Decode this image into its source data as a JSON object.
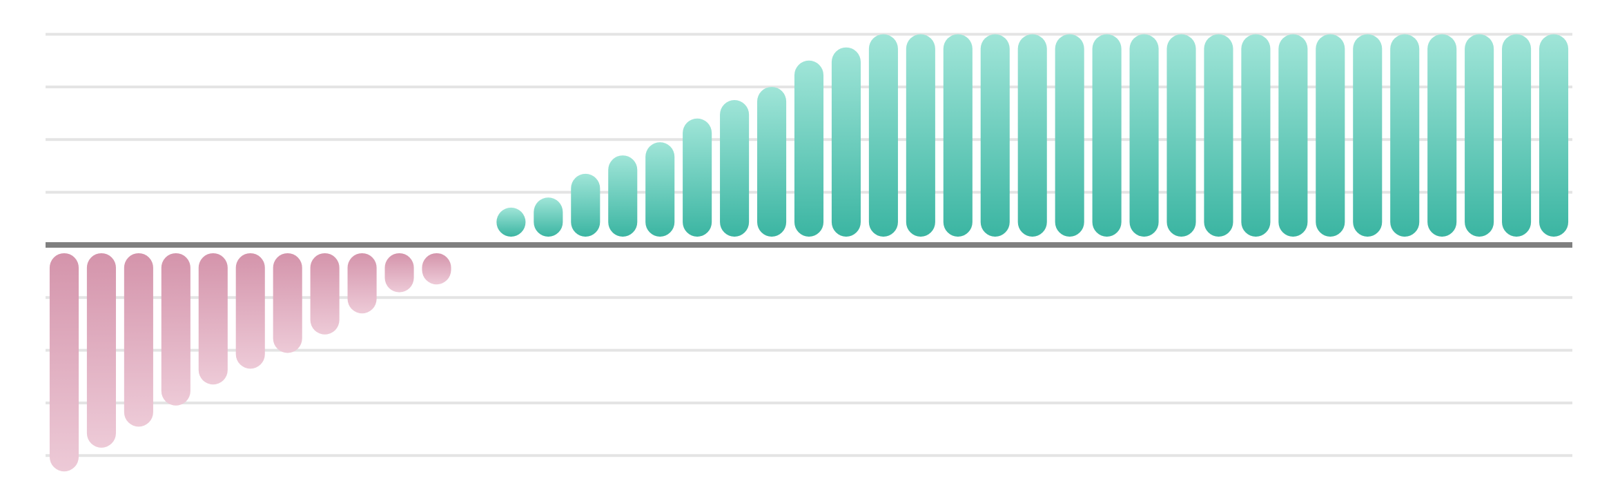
{
  "chart_data": {
    "type": "bar",
    "values": [
      -4.3,
      -3.85,
      -3.45,
      -3.05,
      -2.65,
      -2.35,
      -2.05,
      -1.7,
      -1.3,
      -0.9,
      -0.75,
      0,
      0.65,
      0.9,
      1.35,
      1.7,
      1.95,
      2.4,
      2.75,
      3.0,
      3.5,
      3.75,
      4,
      4,
      4,
      4,
      4,
      4,
      4,
      4,
      4,
      4,
      4,
      4,
      4,
      4,
      4,
      4,
      4,
      4,
      4
    ],
    "colors": {
      "positive": [
        "#a0e5d8",
        "#3bb5a2"
      ],
      "negative": [
        "#d494ab",
        "#edcad7"
      ]
    },
    "ylim": [
      -4.9,
      4.65
    ],
    "yticks": [
      -4,
      -3,
      -2,
      -1,
      0,
      1,
      2,
      3,
      4
    ],
    "grid": true
  }
}
